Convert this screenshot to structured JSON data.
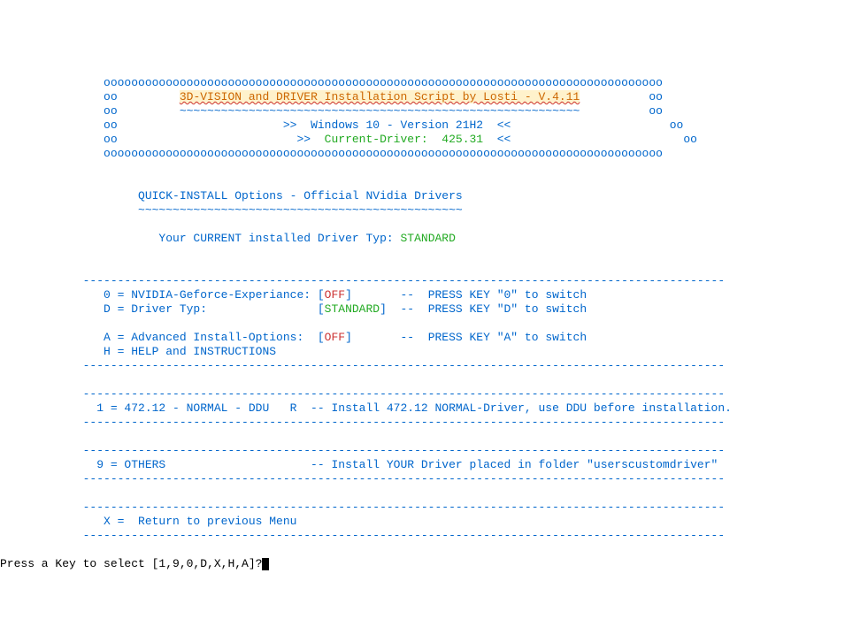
{
  "header": {
    "borderTop": "               ooooooooooooooooooooooooooooooooooooooooooooooooooooooooooooooooooooooooooooooooo",
    "titleLine": {
      "prefix": "               oo         ",
      "title": "3D-VISION and DRIVER Installation Script by Losti - V.4.11",
      "suffix": "          oo"
    },
    "tildeLine": "               oo         ~~~~~~~~~~~~~~~~~~~~~~~~~~~~~~~~~~~~~~~~~~~~~~~~~~~~~~~~~~          oo",
    "osLine": {
      "prefix": "               oo                        >>  ",
      "os": "Windows 10 - Version 21H2",
      "suffix": "  <<                       oo"
    },
    "driverLine": {
      "prefix": "               oo                          >>  ",
      "label": "Current-Driver:  ",
      "version": "425.31",
      "suffix": "  <<                         oo"
    },
    "borderBottom": "               ooooooooooooooooooooooooooooooooooooooooooooooooooooooooooooooooooooooooooooooooo"
  },
  "quickInstall": {
    "title": "                    QUICK-INSTALL Options - Official NVidia Drivers",
    "tilde": "                    ~~~~~~~~~~~~~~~~~~~~~~~~~~~~~~~~~~~~~~~~~~~~~~~",
    "currentPrefix": "                       Your CURRENT installed Driver Typ: ",
    "currentType": "STANDARD"
  },
  "dash": "            ---------------------------------------------------------------------------------------------",
  "options": {
    "opt0": {
      "prefix": "               0 = NVIDIA-Geforce-Experiance: [",
      "val": "OFF",
      "suffix": "]       --  PRESS KEY \"0\" to switch"
    },
    "optD": {
      "prefix": "               D = Driver Typ:                [",
      "val": "STANDARD",
      "suffix": "]  --  PRESS KEY \"D\" to switch"
    },
    "optA": {
      "prefix": "               A = Advanced Install-Options:  [",
      "val": "OFF",
      "suffix": "]       --  PRESS KEY \"A\" to switch"
    },
    "optH": "               H = HELP and INSTRUCTIONS"
  },
  "installers": {
    "opt1": "              1 = 472.12 - NORMAL - DDU   R  -- Install 472.12 NORMAL-Driver, use DDU before installation.",
    "opt9": "              9 = OTHERS                     -- Install YOUR Driver placed in folder \"userscustomdriver\""
  },
  "optX": "               X =  Return to previous Menu",
  "prompt": "Press a Key to select [1,9,0,D,X,H,A]?"
}
